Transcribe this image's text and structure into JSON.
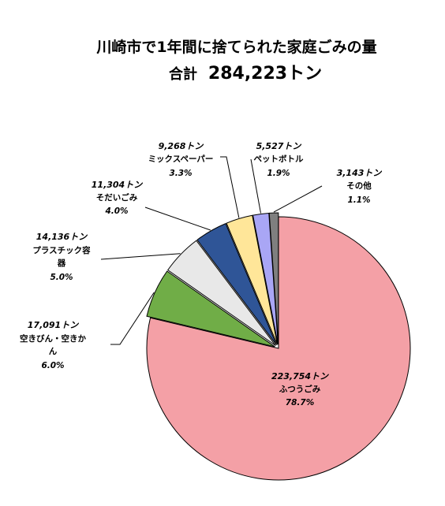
{
  "chart_data": {
    "type": "pie",
    "title": "川崎市で1年間に捨てられた家庭ごみの量",
    "subtitle_label": "合計",
    "subtitle_value": "284,223トン",
    "slices": [
      {
        "value": "223,754トン",
        "name": "ふつうごみ",
        "pct": "78.7%",
        "num": 223754,
        "color": "#F4A0A6"
      },
      {
        "value": "17,091トン",
        "name": "空きびん・空きかん",
        "pct": "6.0%",
        "num": 17091,
        "color": "#70AD47"
      },
      {
        "value": "14,136トン",
        "name": "プラスチック容器",
        "pct": "5.0%",
        "num": 14136,
        "color": "#E8E8E8"
      },
      {
        "value": "11,304トン",
        "name": "そだいごみ",
        "pct": "4.0%",
        "num": 11304,
        "color": "#2F5597"
      },
      {
        "value": "9,268トン",
        "name": "ミックスペーパー",
        "pct": "3.3%",
        "num": 9268,
        "color": "#FFE699"
      },
      {
        "value": "5,527トン",
        "name": "ペットボトル",
        "pct": "1.9%",
        "num": 5527,
        "color": "#A9A6F5"
      },
      {
        "value": "3,143トン",
        "name": "その他",
        "pct": "1.1%",
        "num": 3143,
        "color": "#7F7F7F"
      }
    ]
  }
}
